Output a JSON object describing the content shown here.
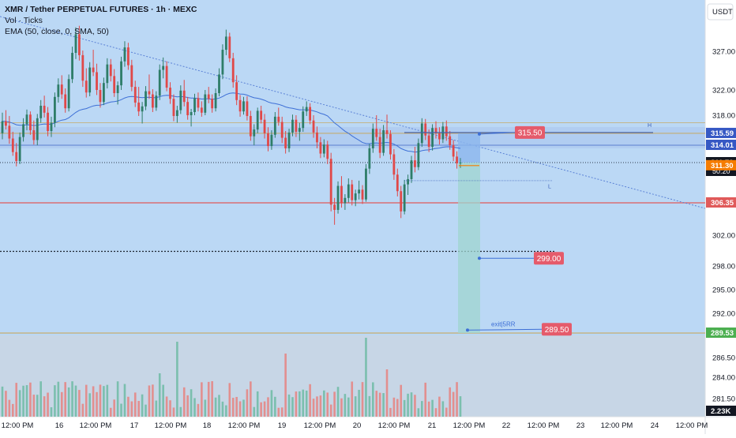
{
  "legend": {
    "title": "XMR / Tether PERPETUAL FUTURES · 1h · MEXC",
    "volume": "Vol · Ticks",
    "ema": "EMA (50, close, 0, SMA, 50)"
  },
  "currency": "USDT",
  "colors": {
    "background": "#bbd8f5",
    "up": "#2e7d68",
    "down": "#e04848",
    "vol_up": "#7bbfae",
    "vol_down": "#e28f8f",
    "ema": "#3d6fd6",
    "trend": "#5b82d6",
    "red_level": "#e05a5a",
    "target_label": "#e55b6b",
    "current_label": "#131722",
    "ask_label": "#f57c00",
    "support_label": "#4caf50"
  },
  "chart_data": {
    "type": "candlestick",
    "y_axis": {
      "tick_labels": [
        "327.00",
        "322.00",
        "318.00",
        "302.00",
        "298.00",
        "295.00",
        "292.00",
        "286.50",
        "284.00",
        "281.50"
      ],
      "price_labels": [
        {
          "value": 315.59,
          "text": "315.59",
          "style": "blue"
        },
        {
          "value": 314.01,
          "text": "314.01",
          "style": "blue"
        },
        {
          "value": 311.7,
          "text": "311.70",
          "sub": "50:20",
          "style": "dark"
        },
        {
          "value": 311.3,
          "text": "311.30",
          "style": "orange"
        },
        {
          "value": 306.35,
          "text": "306.35",
          "style": "red"
        },
        {
          "value": 289.53,
          "text": "289.53",
          "style": "green"
        },
        {
          "value": 2230,
          "text": "2.23K",
          "style": "dark",
          "pane": "volume"
        }
      ]
    },
    "x_axis": {
      "tick_labels": [
        "12:00 PM",
        "16",
        "12:00 PM",
        "17",
        "12:00 PM",
        "18",
        "12:00 PM",
        "19",
        "12:00 PM",
        "20",
        "12:00 PM",
        "21",
        "12:00 PM",
        "22",
        "12:00 PM",
        "23",
        "12:00 PM",
        "24",
        "12:00 PM"
      ]
    },
    "horizontal_levels": [
      {
        "value": 315.59,
        "style": "band-top"
      },
      {
        "value": 314.01,
        "style": "band-bottom"
      },
      {
        "value": 311.7,
        "style": "dotted"
      },
      {
        "value": 306.35,
        "style": "red"
      },
      {
        "value": 299.9,
        "style": "dotted-dark"
      },
      {
        "value": 289.53,
        "style": "support"
      }
    ],
    "annotations": [
      {
        "text": "315.50",
        "value": 315.5
      },
      {
        "text": "299.00",
        "value": 299.0
      },
      {
        "text": "289.50",
        "value": 289.5
      },
      {
        "text": "exit|5RR"
      },
      {
        "text": "H"
      },
      {
        "text": "L"
      }
    ],
    "series": [
      {
        "name": "XMR/USDT",
        "type": "candlestick",
        "values": [
          {
            "o": 315.6,
            "h": 318.4,
            "l": 314.8,
            "c": 317.2
          },
          {
            "o": 317.2,
            "h": 318.8,
            "l": 316.1,
            "c": 316.6
          },
          {
            "o": 316.6,
            "h": 317.9,
            "l": 314.2,
            "c": 314.9
          },
          {
            "o": 314.9,
            "h": 315.8,
            "l": 312.6,
            "c": 313.1
          },
          {
            "o": 313.1,
            "h": 314.3,
            "l": 311.2,
            "c": 311.9
          },
          {
            "o": 311.9,
            "h": 315.7,
            "l": 311.5,
            "c": 315.1
          },
          {
            "o": 315.1,
            "h": 317.6,
            "l": 314.5,
            "c": 316.8
          },
          {
            "o": 316.8,
            "h": 318.9,
            "l": 316.0,
            "c": 318.1
          },
          {
            "o": 318.1,
            "h": 318.6,
            "l": 315.4,
            "c": 316.0
          },
          {
            "o": 316.0,
            "h": 317.3,
            "l": 314.1,
            "c": 314.7
          },
          {
            "o": 314.7,
            "h": 318.2,
            "l": 314.0,
            "c": 317.6
          },
          {
            "o": 317.6,
            "h": 320.4,
            "l": 317.0,
            "c": 319.5
          },
          {
            "o": 319.5,
            "h": 321.1,
            "l": 317.7,
            "c": 318.4
          },
          {
            "o": 318.4,
            "h": 319.3,
            "l": 315.2,
            "c": 315.9
          },
          {
            "o": 315.9,
            "h": 317.8,
            "l": 315.1,
            "c": 317.0
          },
          {
            "o": 317.0,
            "h": 321.6,
            "l": 316.4,
            "c": 320.9
          },
          {
            "o": 320.9,
            "h": 323.5,
            "l": 320.0,
            "c": 322.7
          },
          {
            "o": 322.7,
            "h": 323.9,
            "l": 320.6,
            "c": 321.3
          },
          {
            "o": 321.3,
            "h": 322.2,
            "l": 318.4,
            "c": 319.1
          },
          {
            "o": 319.1,
            "h": 324.0,
            "l": 318.6,
            "c": 323.4
          },
          {
            "o": 323.4,
            "h": 327.6,
            "l": 322.9,
            "c": 326.8
          },
          {
            "o": 326.8,
            "h": 330.1,
            "l": 326.0,
            "c": 329.2
          },
          {
            "o": 329.2,
            "h": 330.3,
            "l": 325.8,
            "c": 326.5
          },
          {
            "o": 326.5,
            "h": 327.1,
            "l": 322.4,
            "c": 323.2
          },
          {
            "o": 323.2,
            "h": 324.8,
            "l": 320.8,
            "c": 321.6
          },
          {
            "o": 321.6,
            "h": 325.6,
            "l": 321.0,
            "c": 324.9
          },
          {
            "o": 324.9,
            "h": 327.2,
            "l": 323.8,
            "c": 324.3
          },
          {
            "o": 324.3,
            "h": 325.4,
            "l": 321.2,
            "c": 322.0
          },
          {
            "o": 322.0,
            "h": 322.9,
            "l": 319.2,
            "c": 320.1
          },
          {
            "o": 320.1,
            "h": 323.6,
            "l": 319.6,
            "c": 322.9
          },
          {
            "o": 322.9,
            "h": 326.1,
            "l": 322.2,
            "c": 325.3
          },
          {
            "o": 325.3,
            "h": 326.0,
            "l": 323.1,
            "c": 323.8
          },
          {
            "o": 323.8,
            "h": 324.7,
            "l": 320.9,
            "c": 321.5
          },
          {
            "o": 321.5,
            "h": 323.1,
            "l": 319.7,
            "c": 322.6
          },
          {
            "o": 322.6,
            "h": 326.3,
            "l": 322.0,
            "c": 325.7
          },
          {
            "o": 325.7,
            "h": 328.3,
            "l": 325.0,
            "c": 327.5
          },
          {
            "o": 327.5,
            "h": 328.1,
            "l": 324.6,
            "c": 325.2
          },
          {
            "o": 325.2,
            "h": 325.9,
            "l": 321.8,
            "c": 322.4
          },
          {
            "o": 322.4,
            "h": 323.2,
            "l": 319.3,
            "c": 320.0
          },
          {
            "o": 320.0,
            "h": 322.4,
            "l": 317.9,
            "c": 318.6
          },
          {
            "o": 318.6,
            "h": 320.1,
            "l": 316.9,
            "c": 319.4
          },
          {
            "o": 319.4,
            "h": 322.5,
            "l": 318.8,
            "c": 321.8
          },
          {
            "o": 321.8,
            "h": 324.0,
            "l": 320.6,
            "c": 321.3
          },
          {
            "o": 321.3,
            "h": 322.1,
            "l": 318.5,
            "c": 319.2
          },
          {
            "o": 319.2,
            "h": 321.8,
            "l": 318.7,
            "c": 321.1
          },
          {
            "o": 321.1,
            "h": 325.3,
            "l": 320.4,
            "c": 324.6
          },
          {
            "o": 324.6,
            "h": 326.2,
            "l": 323.5,
            "c": 325.1
          },
          {
            "o": 325.1,
            "h": 325.7,
            "l": 321.8,
            "c": 322.3
          },
          {
            "o": 322.3,
            "h": 323.0,
            "l": 319.8,
            "c": 320.6
          },
          {
            "o": 320.6,
            "h": 321.3,
            "l": 317.2,
            "c": 317.9
          },
          {
            "o": 317.9,
            "h": 319.5,
            "l": 317.0,
            "c": 318.8
          },
          {
            "o": 318.8,
            "h": 322.6,
            "l": 318.2,
            "c": 321.9
          },
          {
            "o": 321.9,
            "h": 323.3,
            "l": 319.4,
            "c": 320.1
          },
          {
            "o": 320.1,
            "h": 320.9,
            "l": 317.4,
            "c": 318.0
          },
          {
            "o": 318.0,
            "h": 319.0,
            "l": 316.5,
            "c": 318.5
          },
          {
            "o": 318.5,
            "h": 321.4,
            "l": 318.0,
            "c": 320.7
          },
          {
            "o": 320.7,
            "h": 321.6,
            "l": 318.6,
            "c": 319.2
          },
          {
            "o": 319.2,
            "h": 320.2,
            "l": 317.8,
            "c": 318.4
          },
          {
            "o": 318.4,
            "h": 322.0,
            "l": 318.0,
            "c": 321.3
          },
          {
            "o": 321.3,
            "h": 322.4,
            "l": 319.9,
            "c": 320.6
          },
          {
            "o": 320.6,
            "h": 321.3,
            "l": 318.4,
            "c": 319.1
          },
          {
            "o": 319.1,
            "h": 322.2,
            "l": 318.6,
            "c": 321.5
          },
          {
            "o": 321.5,
            "h": 324.8,
            "l": 321.0,
            "c": 324.0
          },
          {
            "o": 324.0,
            "h": 327.9,
            "l": 323.4,
            "c": 327.2
          },
          {
            "o": 327.2,
            "h": 329.8,
            "l": 326.5,
            "c": 328.9
          },
          {
            "o": 328.9,
            "h": 329.4,
            "l": 325.6,
            "c": 326.1
          },
          {
            "o": 326.1,
            "h": 326.8,
            "l": 322.3,
            "c": 323.0
          },
          {
            "o": 323.0,
            "h": 323.9,
            "l": 319.6,
            "c": 320.4
          },
          {
            "o": 320.4,
            "h": 321.2,
            "l": 317.8,
            "c": 318.6
          },
          {
            "o": 318.6,
            "h": 320.9,
            "l": 318.1,
            "c": 320.2
          },
          {
            "o": 320.2,
            "h": 321.0,
            "l": 317.3,
            "c": 317.9
          },
          {
            "o": 317.9,
            "h": 318.7,
            "l": 314.6,
            "c": 315.2
          },
          {
            "o": 315.2,
            "h": 316.8,
            "l": 314.0,
            "c": 316.1
          },
          {
            "o": 316.1,
            "h": 319.2,
            "l": 315.6,
            "c": 318.7
          },
          {
            "o": 318.7,
            "h": 319.5,
            "l": 316.9,
            "c": 317.4
          },
          {
            "o": 317.4,
            "h": 318.2,
            "l": 314.9,
            "c": 315.6
          },
          {
            "o": 315.6,
            "h": 316.4,
            "l": 313.2,
            "c": 313.9
          },
          {
            "o": 313.9,
            "h": 316.0,
            "l": 313.4,
            "c": 315.4
          },
          {
            "o": 315.4,
            "h": 318.5,
            "l": 315.0,
            "c": 317.8
          },
          {
            "o": 317.8,
            "h": 319.2,
            "l": 316.6,
            "c": 317.1
          },
          {
            "o": 317.1,
            "h": 317.8,
            "l": 314.3,
            "c": 315.0
          },
          {
            "o": 315.0,
            "h": 315.9,
            "l": 312.9,
            "c": 313.6
          },
          {
            "o": 313.6,
            "h": 316.2,
            "l": 313.1,
            "c": 315.7
          },
          {
            "o": 315.7,
            "h": 318.1,
            "l": 315.2,
            "c": 317.4
          },
          {
            "o": 317.4,
            "h": 318.0,
            "l": 315.1,
            "c": 315.8
          },
          {
            "o": 315.8,
            "h": 317.0,
            "l": 314.6,
            "c": 316.3
          },
          {
            "o": 316.3,
            "h": 319.4,
            "l": 315.8,
            "c": 318.6
          },
          {
            "o": 318.6,
            "h": 320.2,
            "l": 317.9,
            "c": 319.3
          },
          {
            "o": 319.3,
            "h": 319.9,
            "l": 316.8,
            "c": 317.3
          },
          {
            "o": 317.3,
            "h": 318.0,
            "l": 315.0,
            "c": 315.7
          },
          {
            "o": 315.7,
            "h": 316.5,
            "l": 313.6,
            "c": 314.4
          },
          {
            "o": 314.4,
            "h": 315.1,
            "l": 312.3,
            "c": 312.9
          },
          {
            "o": 312.9,
            "h": 314.8,
            "l": 312.4,
            "c": 314.1
          },
          {
            "o": 314.1,
            "h": 314.6,
            "l": 311.5,
            "c": 312.2
          },
          {
            "o": 312.2,
            "h": 313.0,
            "l": 305.2,
            "c": 306.1
          },
          {
            "o": 306.1,
            "h": 307.0,
            "l": 303.4,
            "c": 305.4
          },
          {
            "o": 305.4,
            "h": 309.2,
            "l": 304.9,
            "c": 308.6
          },
          {
            "o": 308.6,
            "h": 309.9,
            "l": 305.7,
            "c": 306.3
          },
          {
            "o": 306.3,
            "h": 307.5,
            "l": 305.4,
            "c": 307.0
          },
          {
            "o": 307.0,
            "h": 309.6,
            "l": 306.4,
            "c": 308.8
          },
          {
            "o": 308.8,
            "h": 309.4,
            "l": 306.0,
            "c": 306.7
          },
          {
            "o": 306.7,
            "h": 308.1,
            "l": 305.9,
            "c": 307.6
          },
          {
            "o": 307.6,
            "h": 309.3,
            "l": 306.8,
            "c": 308.1
          },
          {
            "o": 308.1,
            "h": 308.7,
            "l": 306.2,
            "c": 306.8
          },
          {
            "o": 306.8,
            "h": 311.5,
            "l": 306.5,
            "c": 310.9
          },
          {
            "o": 310.9,
            "h": 314.2,
            "l": 310.2,
            "c": 313.6
          },
          {
            "o": 313.6,
            "h": 316.9,
            "l": 313.0,
            "c": 316.2
          },
          {
            "o": 316.2,
            "h": 318.0,
            "l": 314.6,
            "c": 315.1
          },
          {
            "o": 315.1,
            "h": 316.2,
            "l": 312.3,
            "c": 313.0
          },
          {
            "o": 313.0,
            "h": 316.7,
            "l": 312.6,
            "c": 316.0
          },
          {
            "o": 316.0,
            "h": 318.1,
            "l": 314.9,
            "c": 315.5
          },
          {
            "o": 315.5,
            "h": 316.0,
            "l": 312.1,
            "c": 312.8
          },
          {
            "o": 312.8,
            "h": 313.5,
            "l": 309.4,
            "c": 310.1
          },
          {
            "o": 310.1,
            "h": 310.9,
            "l": 307.2,
            "c": 307.9
          },
          {
            "o": 307.9,
            "h": 308.6,
            "l": 304.3,
            "c": 305.2
          },
          {
            "o": 305.2,
            "h": 309.4,
            "l": 304.8,
            "c": 308.8
          },
          {
            "o": 308.8,
            "h": 310.1,
            "l": 307.4,
            "c": 309.5
          },
          {
            "o": 309.5,
            "h": 312.6,
            "l": 309.0,
            "c": 312.0
          },
          {
            "o": 312.0,
            "h": 313.8,
            "l": 310.4,
            "c": 311.1
          },
          {
            "o": 311.1,
            "h": 314.9,
            "l": 310.7,
            "c": 314.3
          },
          {
            "o": 314.3,
            "h": 317.6,
            "l": 313.8,
            "c": 316.9
          },
          {
            "o": 316.9,
            "h": 317.5,
            "l": 314.7,
            "c": 315.3
          },
          {
            "o": 315.3,
            "h": 316.1,
            "l": 313.1,
            "c": 313.8
          },
          {
            "o": 313.8,
            "h": 316.8,
            "l": 313.3,
            "c": 316.3
          },
          {
            "o": 316.3,
            "h": 317.2,
            "l": 314.9,
            "c": 315.6
          },
          {
            "o": 315.6,
            "h": 316.4,
            "l": 314.1,
            "c": 314.8
          },
          {
            "o": 314.8,
            "h": 317.1,
            "l": 314.3,
            "c": 316.5
          },
          {
            "o": 316.5,
            "h": 317.3,
            "l": 314.6,
            "c": 315.2
          },
          {
            "o": 315.2,
            "h": 315.9,
            "l": 313.4,
            "c": 314.0
          },
          {
            "o": 314.0,
            "h": 314.7,
            "l": 311.9,
            "c": 312.5
          },
          {
            "o": 312.5,
            "h": 313.2,
            "l": 310.9,
            "c": 311.6
          },
          {
            "o": 311.6,
            "h": 312.3,
            "l": 311.0,
            "c": 311.7
          }
        ]
      },
      {
        "name": "EMA (50, close, 0, SMA, 50)",
        "type": "line"
      },
      {
        "name": "Vol",
        "type": "bar"
      }
    ]
  }
}
